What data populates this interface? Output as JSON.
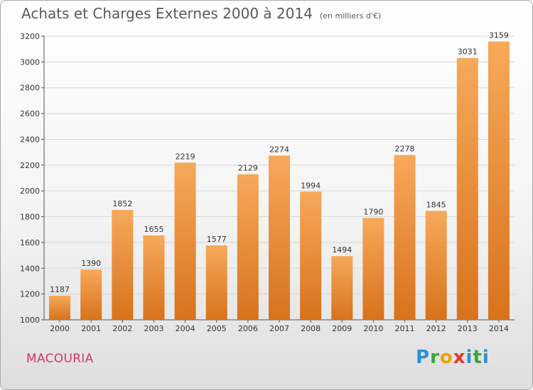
{
  "title": "Achats et Charges Externes 2000 à 2014",
  "subtitle": "(en milliers d'€)",
  "commune": "MACOURIA",
  "logo": {
    "letters": [
      "P",
      "r",
      "o",
      "x",
      "i",
      "t",
      "i"
    ],
    "colors": [
      "#2b8fd6",
      "#3aa33a",
      "#f2a000",
      "#e8362a",
      "#2b8fd6",
      "#3aa33a",
      "#2b8fd6"
    ]
  },
  "colors": {
    "bar_top": "#f6a95a",
    "bar_bottom": "#d8721c",
    "grid": "#d6d6d6",
    "axis": "#555555",
    "text": "#333333"
  },
  "chart_data": {
    "type": "bar",
    "categories": [
      "2000",
      "2001",
      "2002",
      "2003",
      "2004",
      "2005",
      "2006",
      "2007",
      "2008",
      "2009",
      "2010",
      "2011",
      "2012",
      "2013",
      "2014"
    ],
    "values": [
      1187,
      1390,
      1852,
      1655,
      2219,
      1577,
      2129,
      2274,
      1994,
      1494,
      1790,
      2278,
      1845,
      3031,
      3159
    ],
    "ylim": [
      1000,
      3200
    ],
    "yticks": [
      1000,
      1200,
      1400,
      1600,
      1800,
      2000,
      2200,
      2400,
      2600,
      2800,
      3000,
      3200
    ],
    "grid": true,
    "data_labels": true
  }
}
